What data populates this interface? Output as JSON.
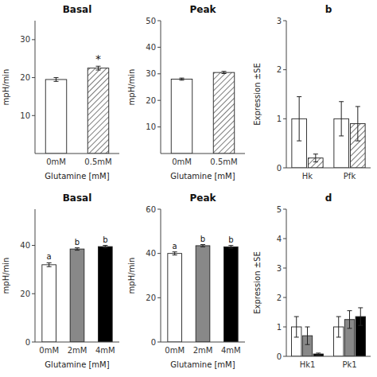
{
  "chart_data": [
    {
      "type": "bar",
      "title": "Basal",
      "categories": [
        "0mM",
        "0.5mM"
      ],
      "values": [
        19.5,
        22.5
      ],
      "errors": [
        0.5,
        0.5
      ],
      "colors": [
        "white",
        "hatch"
      ],
      "x_label": "Glutamine [mM]",
      "y_label": "mpH/min",
      "ylim": [
        0,
        35
      ],
      "yticks": [
        10,
        20,
        30
      ],
      "annotations": [
        {
          "text": "*",
          "category": "0.5mM"
        }
      ]
    },
    {
      "type": "bar",
      "title": "Peak",
      "categories": [
        "0mM",
        "0.5mM"
      ],
      "values": [
        28.0,
        30.5
      ],
      "errors": [
        0.4,
        0.4
      ],
      "colors": [
        "white",
        "hatch"
      ],
      "x_label": "Glutamine [mM]",
      "y_label": "mpH/min",
      "ylim": [
        0,
        50
      ],
      "yticks": [
        10,
        20,
        30,
        40,
        50
      ]
    },
    {
      "type": "bar",
      "title": "b",
      "categories": [
        "Hk",
        "Pfk"
      ],
      "series": [
        {
          "color": "white",
          "values": [
            1.0,
            1.0
          ],
          "errors": [
            0.45,
            0.35
          ]
        },
        {
          "color": "hatch",
          "values": [
            0.2,
            0.9
          ],
          "errors": [
            0.08,
            0.35
          ]
        }
      ],
      "y_label": "Expression ±SE",
      "ylim": [
        0,
        3
      ],
      "yticks": [
        0,
        1,
        2,
        3
      ]
    },
    {
      "type": "bar",
      "title": "Basal",
      "categories": [
        "0mM",
        "2mM",
        "4mM"
      ],
      "values": [
        32.0,
        38.5,
        39.5
      ],
      "errors": [
        0.8,
        0.5,
        0.5
      ],
      "colors": [
        "white",
        "#888888",
        "black"
      ],
      "x_label": "Glutamine [mM]",
      "y_label": "mpH/min",
      "ylim": [
        0,
        55
      ],
      "yticks": [
        0,
        20,
        40
      ],
      "annotations": [
        {
          "text": "a",
          "category": "0mM"
        },
        {
          "text": "b",
          "category": "2mM"
        },
        {
          "text": "b",
          "category": "4mM"
        }
      ]
    },
    {
      "type": "bar",
      "title": "Peak",
      "categories": [
        "0mM",
        "2mM",
        "4mM"
      ],
      "values": [
        40.0,
        43.5,
        43.0
      ],
      "errors": [
        0.7,
        0.5,
        0.6
      ],
      "colors": [
        "white",
        "#888888",
        "black"
      ],
      "x_label": "Glutamine [mM]",
      "y_label": "mpH/min",
      "ylim": [
        0,
        60
      ],
      "yticks": [
        0,
        20,
        40,
        60
      ],
      "annotations": [
        {
          "text": "a",
          "category": "0mM"
        },
        {
          "text": "b",
          "category": "2mM"
        },
        {
          "text": "b",
          "category": "4mM"
        }
      ]
    },
    {
      "type": "bar",
      "title": "d",
      "categories": [
        "Hk1",
        "Pk1"
      ],
      "series": [
        {
          "color": "white",
          "values": [
            1.0,
            1.0
          ],
          "errors": [
            0.35,
            0.35
          ]
        },
        {
          "color": "#888888",
          "values": [
            0.7,
            1.25
          ],
          "errors": [
            0.3,
            0.3
          ]
        },
        {
          "color": "black",
          "values": [
            0.08,
            1.35
          ],
          "errors": [
            0.03,
            0.3
          ]
        }
      ],
      "y_label": "Expression ±SE",
      "ylim": [
        0,
        5
      ],
      "yticks": [
        0,
        1,
        2,
        3,
        4,
        5
      ]
    }
  ]
}
